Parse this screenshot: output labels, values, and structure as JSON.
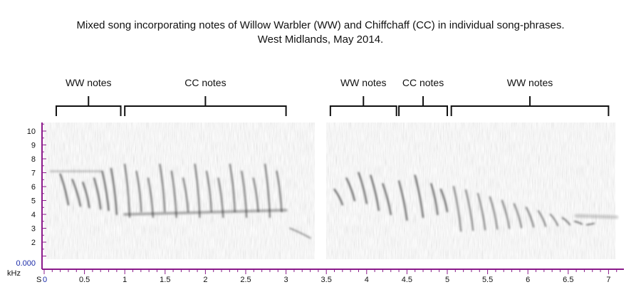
{
  "title": {
    "line1": "Mixed song incorporating notes of Willow Warbler (WW) and Chiffchaff (CC) in individual song-phrases.",
    "line2": "West Midlands, May 2014."
  },
  "groups": [
    {
      "label": "WW notes",
      "start": 0.15,
      "end": 0.95
    },
    {
      "label": "CC notes",
      "start": 1.0,
      "end": 3.0
    },
    {
      "label": "WW notes",
      "start": 3.55,
      "end": 4.37
    },
    {
      "label": "CC notes",
      "start": 4.4,
      "end": 5.0
    },
    {
      "label": "WW notes",
      "start": 5.05,
      "end": 7.0
    }
  ],
  "axes": {
    "y_ticks": [
      "10",
      "9",
      "8",
      "7",
      "6",
      "5",
      "4",
      "3",
      "2"
    ],
    "y_zero": "0.000",
    "y_unit": "kHz",
    "x_ticks": [
      "0.5",
      "1",
      "1.5",
      "2",
      "2.5",
      "3",
      "3.5",
      "4",
      "4.5",
      "5",
      "5.5",
      "6",
      "6.5",
      "7"
    ],
    "x_origin_s": "S",
    "x_origin_0": "0"
  },
  "colors": {
    "axis": "#8b1a8b",
    "zero_label": "#1a2aa8"
  }
}
